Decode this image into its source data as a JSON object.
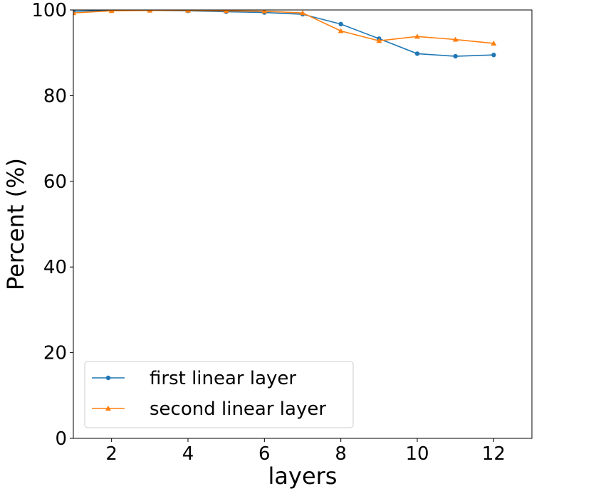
{
  "chart_data": {
    "type": "line",
    "title": "",
    "xlabel": "layers",
    "ylabel": "Percent (%)",
    "xlim": [
      1,
      13
    ],
    "ylim": [
      0,
      100
    ],
    "xticks": [
      2,
      4,
      6,
      8,
      10,
      12
    ],
    "yticks": [
      0,
      20,
      40,
      60,
      80,
      100
    ],
    "grid": false,
    "legend_position": "bottom-left",
    "x": [
      1,
      2,
      3,
      4,
      5,
      6,
      7,
      8,
      9,
      10,
      11,
      12
    ],
    "series": [
      {
        "name": "first linear layer",
        "color": "#1f77b4",
        "marker": "circle",
        "values": [
          99.7,
          99.9,
          99.9,
          99.8,
          99.6,
          99.4,
          99.0,
          96.7,
          93.3,
          89.8,
          89.2,
          89.5
        ]
      },
      {
        "name": "second linear layer",
        "color": "#ff7f0e",
        "marker": "triangle",
        "values": [
          99.3,
          99.8,
          99.9,
          99.9,
          99.8,
          99.7,
          99.3,
          95.1,
          92.8,
          93.8,
          93.1,
          92.2
        ]
      }
    ]
  }
}
